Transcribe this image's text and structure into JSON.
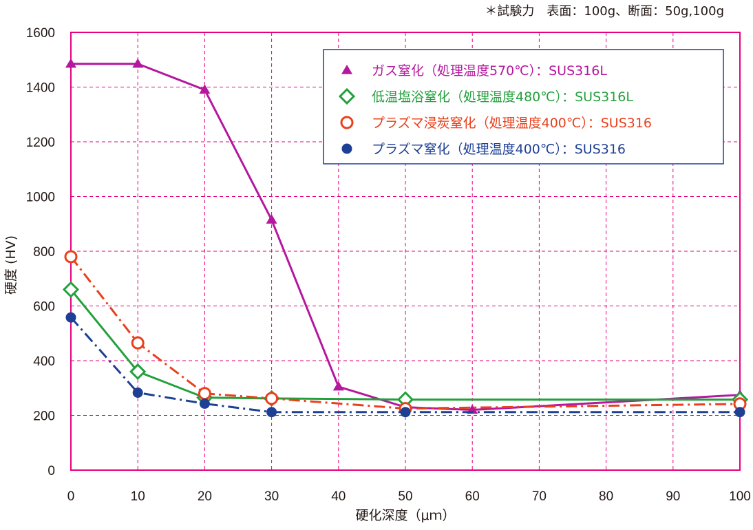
{
  "note": "＊試験力　表面：100g、断面：50g,100g",
  "chart_data": {
    "type": "line",
    "xlabel": "硬化深度（μｍ）",
    "ylabel": "硬度 (HV)",
    "xlim": [
      0,
      100
    ],
    "ylim": [
      0,
      1600
    ],
    "xticks": [
      0,
      10,
      20,
      30,
      40,
      50,
      60,
      70,
      80,
      90,
      100
    ],
    "yticks": [
      0,
      200,
      400,
      600,
      800,
      1000,
      1200,
      1400,
      1600
    ],
    "grid": true,
    "legend_position": "top-right",
    "frame_color": "#e6007e",
    "grid_color": "#e6007e",
    "series": [
      {
        "name": "ガス窒化（処理温度570℃）：SUS316L",
        "color": "#b5179e",
        "marker": "triangle",
        "line": "solid",
        "x": [
          0,
          10,
          20,
          30,
          40,
          50,
          60,
          100
        ],
        "y": [
          1485,
          1485,
          1390,
          915,
          305,
          230,
          220,
          275
        ]
      },
      {
        "name": "低温塩浴窒化（処理温度480℃）：SUS316L",
        "color": "#23a03c",
        "marker": "diamond-open",
        "line": "solid",
        "x": [
          0,
          10,
          20,
          30,
          50,
          100
        ],
        "y": [
          660,
          360,
          265,
          262,
          258,
          258
        ]
      },
      {
        "name": "プラズマ浸炭窒化（処理温度400℃）：SUS316",
        "color": "#e8401c",
        "marker": "circle-open",
        "line": "dashdot",
        "x": [
          0,
          10,
          20,
          30,
          50,
          100
        ],
        "y": [
          780,
          465,
          280,
          262,
          225,
          242
        ]
      },
      {
        "name": "プラズマ窒化（処理温度400℃）：SUS316",
        "color": "#1d3f94",
        "marker": "circle-filled",
        "line": "dashdot",
        "x": [
          0,
          10,
          20,
          30,
          50,
          100
        ],
        "y": [
          558,
          283,
          243,
          212,
          212,
          212
        ]
      }
    ]
  }
}
